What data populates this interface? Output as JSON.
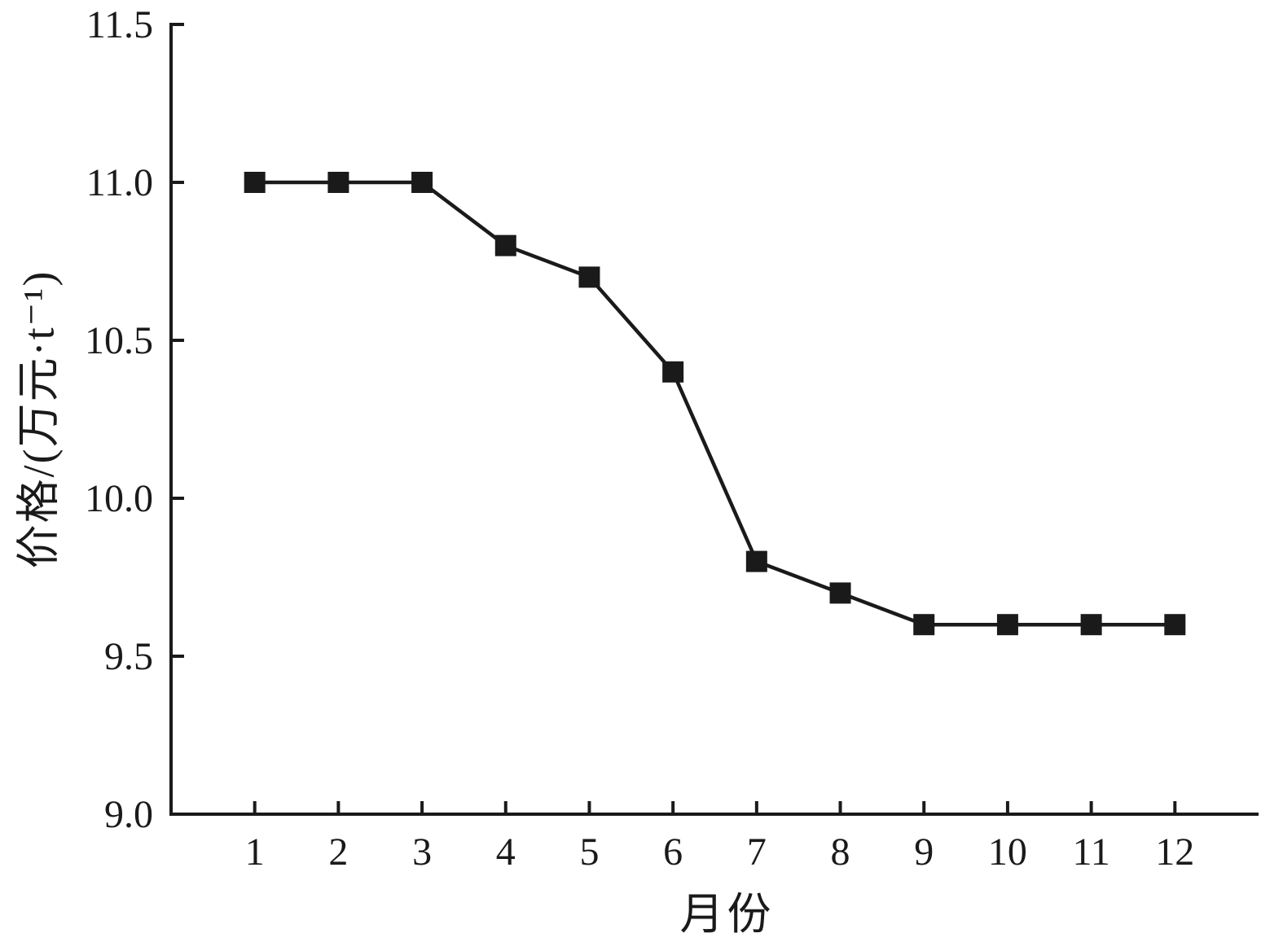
{
  "chart_data": {
    "type": "line",
    "title": "",
    "xlabel": "月份",
    "ylabel": "价格/(万元·t⁻¹)",
    "x": [
      1,
      2,
      3,
      4,
      5,
      6,
      7,
      8,
      9,
      10,
      11,
      12
    ],
    "values": [
      11.0,
      11.0,
      11.0,
      10.8,
      10.7,
      10.4,
      9.8,
      9.7,
      9.6,
      9.6,
      9.6,
      9.6
    ],
    "series_name": "价格",
    "xlim": [
      0,
      13
    ],
    "ylim": [
      9.0,
      11.5
    ],
    "xticks": [
      1,
      2,
      3,
      4,
      5,
      6,
      7,
      8,
      9,
      10,
      11,
      12
    ],
    "xtick_labels": [
      "1",
      "2",
      "3",
      "4",
      "5",
      "6",
      "7",
      "8",
      "9",
      "10",
      "11",
      "12"
    ],
    "yticks": [
      9.0,
      9.5,
      10.0,
      10.5,
      11.0,
      11.5
    ],
    "ytick_labels": [
      "9.0",
      "9.5",
      "10.0",
      "10.5",
      "11.0",
      "11.5"
    ],
    "grid": false,
    "legend": null,
    "marker": "square",
    "line_color": "#1a1a1a",
    "marker_color": "#1a1a1a",
    "axis_color": "#1a1a1a",
    "background": "#ffffff"
  }
}
